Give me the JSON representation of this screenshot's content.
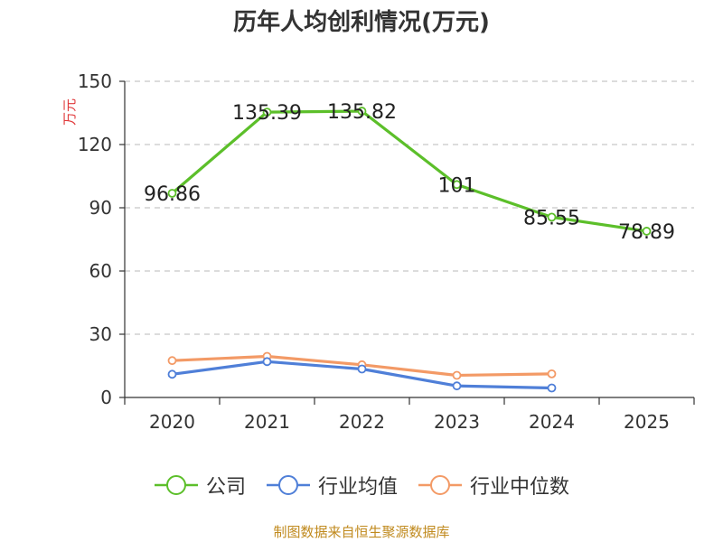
{
  "chart_data": {
    "type": "line",
    "title": "历年人均创利情况(万元)",
    "ylabel": "万元",
    "xlabel": "",
    "categories": [
      "2020",
      "2021",
      "2022",
      "2023",
      "2024",
      "2025"
    ],
    "ylim": [
      0,
      150
    ],
    "yticks": [
      0,
      30,
      60,
      90,
      120,
      150
    ],
    "grid": true,
    "legend_position": "bottom",
    "series": [
      {
        "name": "公司",
        "color": "#5cbf2a",
        "values": [
          96.86,
          135.39,
          135.82,
          101,
          85.55,
          78.89
        ],
        "labels": [
          "96.86",
          "135.39",
          "135.82",
          "101",
          "85.55",
          "78.89"
        ]
      },
      {
        "name": "行业均值",
        "color": "#4f7fd8",
        "values": [
          11,
          17,
          13.5,
          5.5,
          4.5,
          null
        ]
      },
      {
        "name": "行业中位数",
        "color": "#f39a66",
        "values": [
          17.5,
          19.5,
          15.5,
          10.5,
          11.2,
          null
        ]
      }
    ]
  },
  "source": "制图数据来自恒生聚源数据库"
}
